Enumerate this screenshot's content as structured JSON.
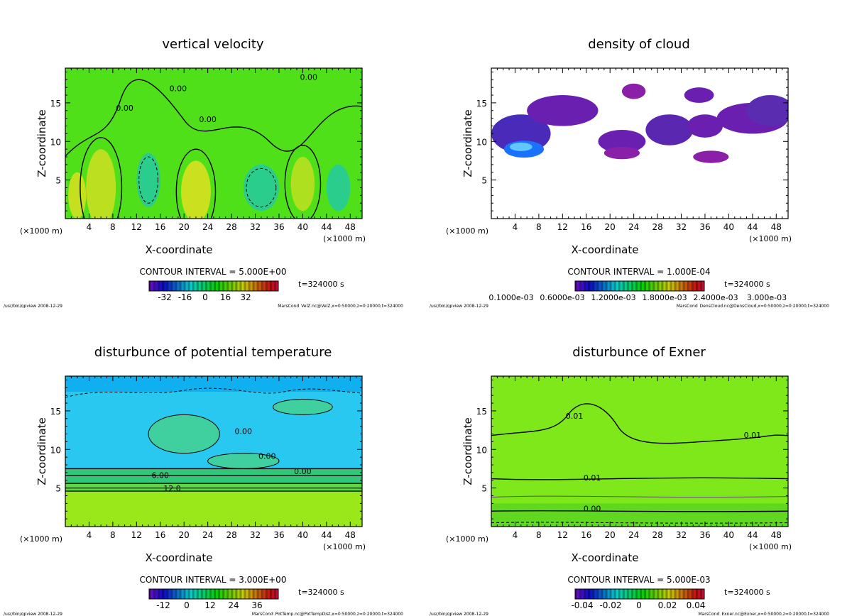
{
  "chart_data": [
    {
      "type": "heatmap",
      "title": "vertical velocity",
      "xlabel": "X-coordinate",
      "ylabel": "Z-coordinate",
      "x_unit": "(×1000 m)",
      "xlim": [
        0,
        50
      ],
      "ylim": [
        0,
        19.5
      ],
      "xticks": [
        "4",
        "8",
        "12",
        "16",
        "20",
        "24",
        "28",
        "32",
        "36",
        "40",
        "44",
        "48"
      ],
      "yticks": [
        "5",
        "10",
        "15"
      ],
      "contour_interval": "CONTOUR INTERVAL = 5.000E+00",
      "colorbar_ticks": [
        "-32",
        "-16",
        "0",
        "16",
        "32"
      ],
      "time": "t=324000 s",
      "footer_left": "/usr/bin/gpview  2008-12-29",
      "footer_right": "MarsCond_VelZ.nc@VelZ,x=0:50000,z=0:20000,t=324000",
      "contour_labels": [
        "0.00",
        "0.00",
        "0.00",
        "0.00"
      ],
      "colors": {
        "base": "#4fe01a",
        "pos": "#e8e020",
        "neg": "#20c8a8"
      }
    },
    {
      "type": "heatmap",
      "title": "density of cloud",
      "xlabel": "X-coordinate",
      "ylabel": "Z-coordinate",
      "x_unit": "(×1000 m)",
      "xlim": [
        0,
        50
      ],
      "ylim": [
        0,
        19.5
      ],
      "xticks": [
        "4",
        "8",
        "12",
        "16",
        "20",
        "24",
        "28",
        "32",
        "36",
        "40",
        "44",
        "48"
      ],
      "yticks": [
        "5",
        "10",
        "15"
      ],
      "contour_interval": "CONTOUR INTERVAL = 1.000E-04",
      "colorbar_ticks": [
        "0.1000e-03",
        "0.6000e-03",
        "1.2000e-03",
        "1.8000e-03",
        "2.4000e-03",
        "3.000e-03"
      ],
      "time": "t=324000 s",
      "footer_left": "/usr/bin/gpview  2008-12-29",
      "footer_right": "MarsCond_DensCloud.nc@DensCloud,x=0:50000,z=0:20000,t=324000",
      "contour_labels": [],
      "colors": {
        "base": "#ffffff",
        "pos": "#6a1fb0",
        "neg": "#1a60ff"
      }
    },
    {
      "type": "heatmap",
      "title": "disturbunce of potential temperature",
      "xlabel": "X-coordinate",
      "ylabel": "Z-coordinate",
      "x_unit": "(×1000 m)",
      "xlim": [
        0,
        50
      ],
      "ylim": [
        0,
        19.5
      ],
      "xticks": [
        "4",
        "8",
        "12",
        "16",
        "20",
        "24",
        "28",
        "32",
        "36",
        "40",
        "44",
        "48"
      ],
      "yticks": [
        "5",
        "10",
        "15"
      ],
      "contour_interval": "CONTOUR INTERVAL = 3.000E+00",
      "colorbar_ticks": [
        "-12",
        "0",
        "12",
        "24",
        "36"
      ],
      "time": "t=324000 s",
      "footer_left": "/usr/bin/gpview  2008-12-29",
      "footer_right": "MarsCond_PotTemp.nc@PotTempDist,x=0:50000,z=0:20000,t=324000",
      "contour_labels": [
        "0.00",
        "0.00",
        "0.00",
        "6.00",
        "12.0"
      ],
      "colors": {
        "base": "#29c8f0",
        "pos": "#8ee81a",
        "neg": "#18a0f8"
      }
    },
    {
      "type": "heatmap",
      "title": "disturbunce of Exner",
      "xlabel": "X-coordinate",
      "ylabel": "Z-coordinate",
      "x_unit": "(×1000 m)",
      "xlim": [
        0,
        50
      ],
      "ylim": [
        0,
        19.5
      ],
      "xticks": [
        "4",
        "8",
        "12",
        "16",
        "20",
        "24",
        "28",
        "32",
        "36",
        "40",
        "44",
        "48"
      ],
      "yticks": [
        "5",
        "10",
        "15"
      ],
      "contour_interval": "CONTOUR INTERVAL = 5.000E-03",
      "colorbar_ticks": [
        "-0.04",
        "-0.02",
        "0",
        "0.02",
        "0.04"
      ],
      "time": "t=324000 s",
      "footer_left": "/usr/bin/gpview  2008-12-29",
      "footer_right": "MarsCond_Exner.nc@Exner,x=0:50000,z=0:20000,t=324000",
      "contour_labels": [
        "0.01",
        "0.01",
        "0.01",
        "0.00"
      ],
      "colors": {
        "base": "#7ee81a",
        "pos": "#70e018",
        "neg": "#60d820"
      }
    }
  ]
}
